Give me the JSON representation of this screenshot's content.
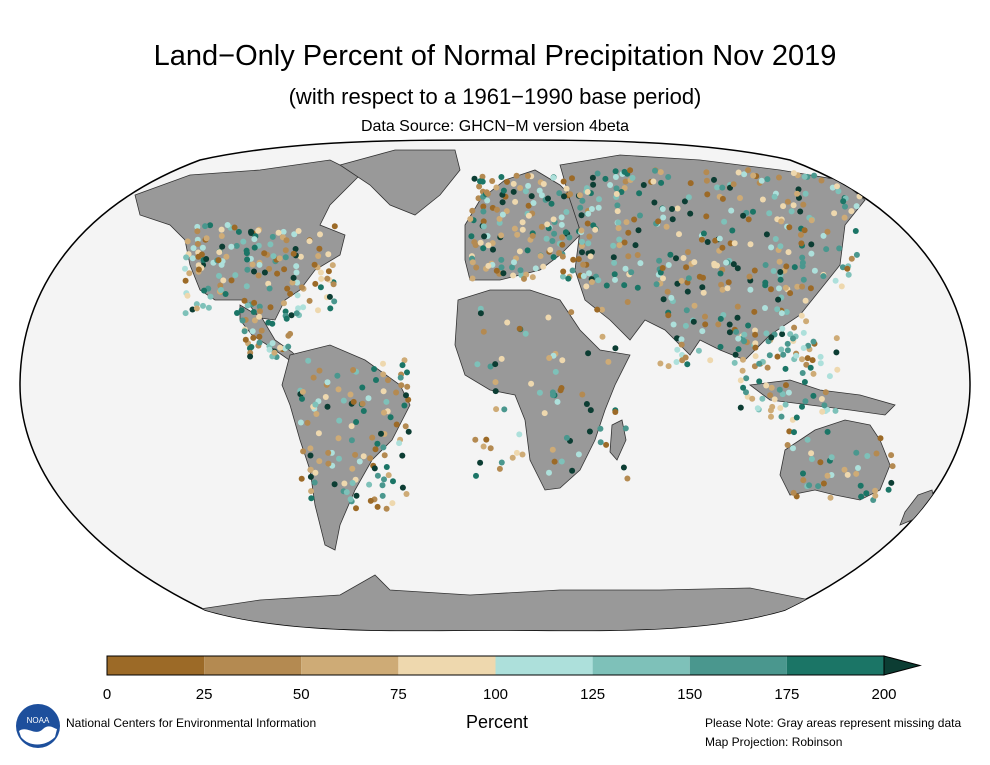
{
  "title": "Land−Only Percent of Normal Precipitation Nov 2019",
  "subtitle": "(with respect to a 1961−1990 base period)",
  "source": "Data Source: GHCN−M version 4beta",
  "legend": {
    "unit": "Percent",
    "ticks": [
      "0",
      "25",
      "50",
      "75",
      "100",
      "125",
      "150",
      "175",
      "200"
    ],
    "colors": [
      "#9c6a27",
      "#b48a51",
      "#ceab76",
      "#eed8ae",
      "#ade0db",
      "#7ec1b9",
      "#4a978e",
      "#1b7566"
    ],
    "over_color": "#0c3d33"
  },
  "footer": {
    "org": "National Centers for Environmental Information",
    "note": "Please Note: Gray areas represent missing data",
    "projection": "Map Projection: Robinson"
  },
  "logo": {
    "text": "NOAA"
  },
  "colors": {
    "land_missing": "#999999",
    "ocean": "#f4f4f4"
  }
}
